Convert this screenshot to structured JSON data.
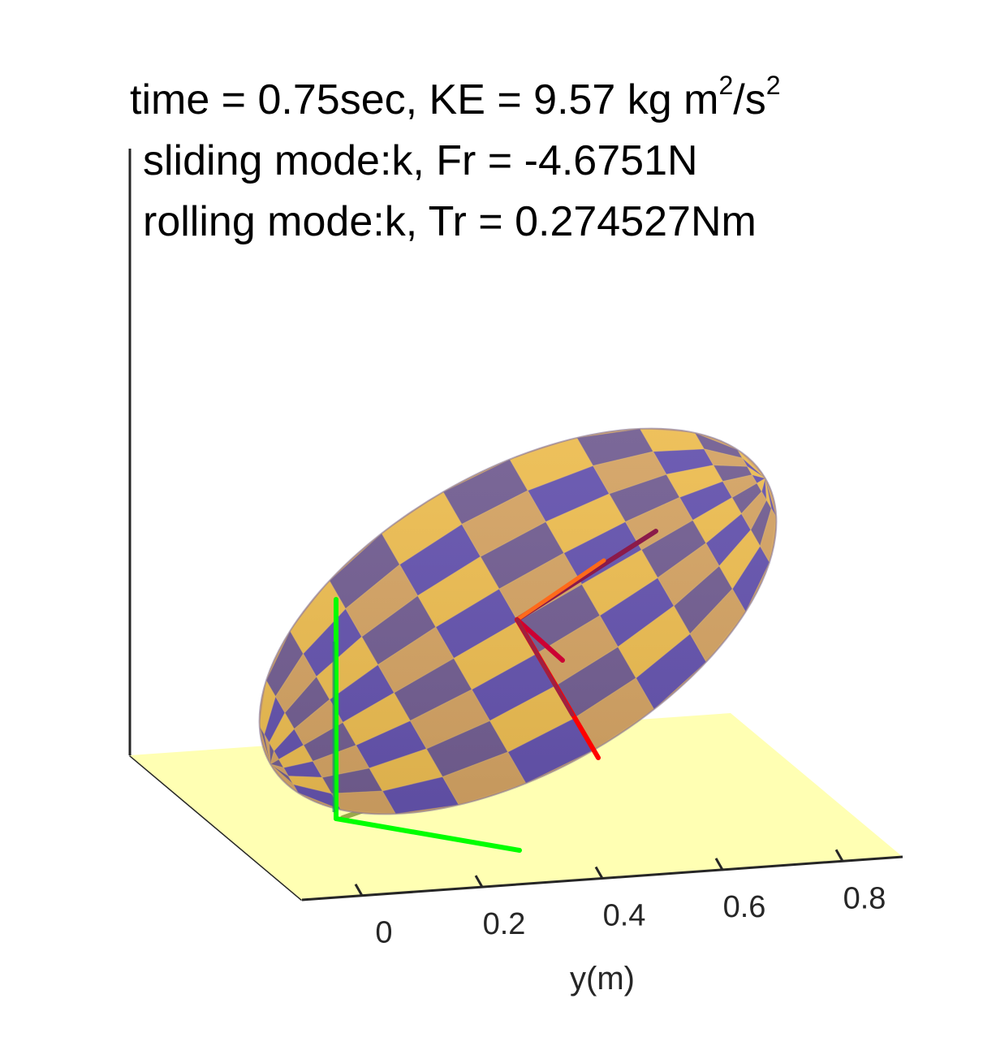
{
  "chart_data": {
    "type": "surface3d",
    "title": {
      "line1": {
        "time_text": "time = 0.75sec, KE = 9.57 kg m",
        "sup1": "2",
        "mid": "/s",
        "sup2": "2"
      },
      "line2": "sliding mode:k, Fr = -4.6751N",
      "line3": "rolling mode:k, Tr = 0.274527Nm"
    },
    "y_axis": {
      "label": "y(m)",
      "ticks": [
        0,
        0.2,
        0.4,
        0.6,
        0.8
      ],
      "tick_labels": [
        "0",
        "0.2",
        "0.4",
        "0.6",
        "0.8"
      ],
      "range": [
        -0.1,
        0.9
      ]
    },
    "values": {
      "time_sec": 0.75,
      "KE": 9.57,
      "Fr_N": -4.6751,
      "Tr_Nm": 0.274527
    },
    "colors": {
      "ground": "#ffffb3",
      "ellipsoid_purple": "#5b4d9c",
      "ellipsoid_blue": "#4b3fbf",
      "ellipsoid_tan": "#d6a463",
      "ellipsoid_gold": "#f2c14e",
      "world_axes": "#00ff00",
      "body_axes": "#ff0000",
      "axis_lines": "#262626"
    }
  }
}
